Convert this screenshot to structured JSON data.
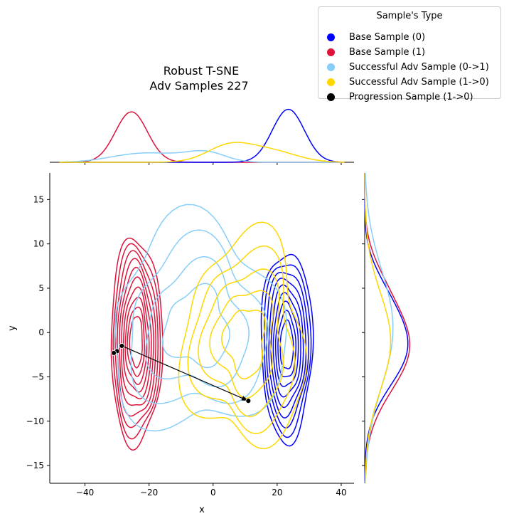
{
  "chart_data": {
    "type": "jointplot-kde",
    "title_line1": "Robust T-SNE",
    "title_line2": "Adv Samples 227",
    "xlabel": "x",
    "ylabel": "y",
    "xlim": [
      -51,
      44
    ],
    "ylim": [
      -17,
      18
    ],
    "x_ticks": [
      -40,
      -20,
      0,
      20,
      40
    ],
    "y_ticks": [
      -15,
      -10,
      -5,
      0,
      5,
      10,
      15
    ],
    "legend": {
      "title": "Sample's Type",
      "entries": [
        {
          "label": "Base Sample (0)",
          "color": "#0000ff"
        },
        {
          "label": "Base Sample (1)",
          "color": "#dc143c"
        },
        {
          "label": "Successful Adv Sample (0->1)",
          "color": "#87cefa"
        },
        {
          "label": "Successful Adv Sample (1->0)",
          "color": "#ffd700"
        },
        {
          "label": "Progression Sample (1->0)",
          "color": "#000000"
        }
      ]
    },
    "kde_series": [
      {
        "name": "Base Sample (0)",
        "color": "#0000ff",
        "center": [
          23,
          -1.5
        ],
        "spread": [
          7,
          5.5
        ],
        "levels": 9,
        "kind": "blob"
      },
      {
        "name": "Base Sample (1)",
        "color": "#dc143c",
        "center": [
          -24,
          -1
        ],
        "spread": [
          7,
          6
        ],
        "levels": 10,
        "kind": "blob"
      },
      {
        "name": "Successful Adv Sample (0->1)",
        "color": "#87cefa",
        "center": [
          -5,
          0.5
        ],
        "spread": [
          17,
          6
        ],
        "levels": 4,
        "kind": "wide"
      },
      {
        "name": "Successful Adv Sample (1->0)",
        "color": "#ffd700",
        "center": [
          10,
          -1
        ],
        "spread": [
          12,
          6
        ],
        "levels": 5,
        "kind": "wide"
      }
    ],
    "progression_points": [
      {
        "x": -28.5,
        "y": -1.5
      },
      {
        "x": -30,
        "y": -2.1
      },
      {
        "x": -31,
        "y": -2.3
      },
      {
        "x": 11,
        "y": -7.7
      }
    ],
    "arrow": {
      "from": [
        -28.5,
        -1.5
      ],
      "to": [
        11,
        -7.7
      ]
    },
    "marginal_x": [
      {
        "name": "Base Sample (1)",
        "color": "#dc143c",
        "components": [
          [
            -25.5,
            5,
            1.0
          ]
        ]
      },
      {
        "name": "Base Sample (0)",
        "color": "#0000ff",
        "components": [
          [
            23.5,
            5,
            1.05
          ]
        ]
      },
      {
        "name": "Successful Adv Sample (0->1)",
        "color": "#87cefa",
        "components": [
          [
            -24,
            9,
            0.15
          ],
          [
            -2,
            6,
            0.18
          ],
          [
            -12,
            8,
            0.08
          ]
        ]
      },
      {
        "name": "Successful Adv Sample (1->0)",
        "color": "#ffd700",
        "components": [
          [
            5,
            7,
            0.32
          ],
          [
            18,
            8,
            0.22
          ]
        ]
      }
    ],
    "marginal_y": [
      {
        "name": "Base Sample (1)",
        "color": "#dc143c",
        "components": [
          [
            -1.5,
            5,
            0.95
          ],
          [
            6,
            3,
            0.12
          ]
        ]
      },
      {
        "name": "Base Sample (0)",
        "color": "#0000ff",
        "components": [
          [
            -1.5,
            4.5,
            0.9
          ],
          [
            5,
            3,
            0.15
          ]
        ]
      },
      {
        "name": "Successful Adv Sample (0->1)",
        "color": "#87cefa",
        "components": [
          [
            0.5,
            6.5,
            0.6
          ]
        ]
      },
      {
        "name": "Successful Adv Sample (1->0)",
        "color": "#ffd700",
        "components": [
          [
            -1,
            5.5,
            0.55
          ]
        ]
      }
    ]
  }
}
